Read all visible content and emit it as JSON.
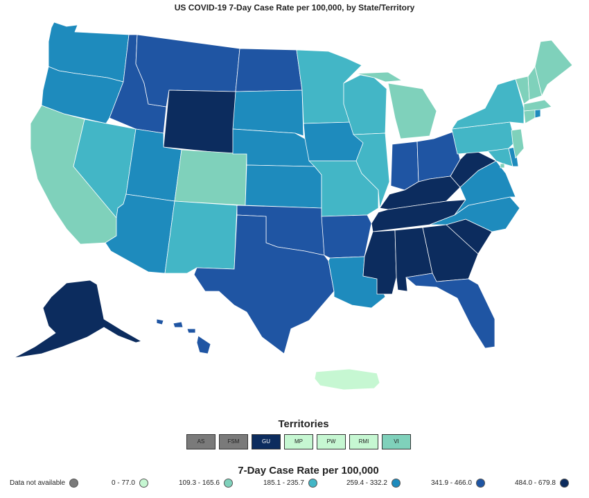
{
  "title": "US COVID-19 7-Day Case Rate per 100,000, by State/Territory",
  "colors": {
    "na": "#7a7a7a",
    "c1": "#c6f7d2",
    "c2": "#7fd1bb",
    "c3": "#43b6c6",
    "c4": "#1e8bbd",
    "c5": "#1f55a3",
    "c6": "#0c2c5e"
  },
  "territories": {
    "title": "Territories",
    "items": [
      {
        "label": "AS",
        "color": "#7a7a7a"
      },
      {
        "label": "FSM",
        "color": "#7a7a7a"
      },
      {
        "label": "GU",
        "color": "#0c2c5e"
      },
      {
        "label": "MP",
        "color": "#c6f7d2"
      },
      {
        "label": "PW",
        "color": "#c6f7d2"
      },
      {
        "label": "RMI",
        "color": "#c6f7d2"
      },
      {
        "label": "VI",
        "color": "#7fd1bb"
      }
    ]
  },
  "legend": {
    "title": "7-Day Case Rate per 100,000",
    "items": [
      {
        "label": "Data not available",
        "color": "#7a7a7a"
      },
      {
        "label": "0 - 77.0",
        "color": "#c6f7d2"
      },
      {
        "label": "109.3 - 165.6",
        "color": "#7fd1bb"
      },
      {
        "label": "185.1 - 235.7",
        "color": "#43b6c6"
      },
      {
        "label": "259.4 - 332.2",
        "color": "#1e8bbd"
      },
      {
        "label": "341.9 - 466.0",
        "color": "#1f55a3"
      },
      {
        "label": "484.0 - 679.8",
        "color": "#0c2c5e"
      }
    ]
  },
  "states": [
    {
      "name": "WA",
      "cls": "c4"
    },
    {
      "name": "OR",
      "cls": "c4"
    },
    {
      "name": "CA",
      "cls": "c2"
    },
    {
      "name": "NV",
      "cls": "c3"
    },
    {
      "name": "ID",
      "cls": "c5"
    },
    {
      "name": "MT",
      "cls": "c5"
    },
    {
      "name": "WY",
      "cls": "c6"
    },
    {
      "name": "UT",
      "cls": "c4"
    },
    {
      "name": "AZ",
      "cls": "c4"
    },
    {
      "name": "CO",
      "cls": "c2"
    },
    {
      "name": "NM",
      "cls": "c3"
    },
    {
      "name": "ND",
      "cls": "c5"
    },
    {
      "name": "SD",
      "cls": "c4"
    },
    {
      "name": "NE",
      "cls": "c4"
    },
    {
      "name": "KS",
      "cls": "c4"
    },
    {
      "name": "OK",
      "cls": "c5"
    },
    {
      "name": "TX",
      "cls": "c5"
    },
    {
      "name": "MN",
      "cls": "c3"
    },
    {
      "name": "IA",
      "cls": "c4"
    },
    {
      "name": "MO",
      "cls": "c3"
    },
    {
      "name": "AR",
      "cls": "c5"
    },
    {
      "name": "LA",
      "cls": "c4"
    },
    {
      "name": "WI",
      "cls": "c3"
    },
    {
      "name": "IL",
      "cls": "c3"
    },
    {
      "name": "MI",
      "cls": "c2"
    },
    {
      "name": "IN",
      "cls": "c5"
    },
    {
      "name": "OH",
      "cls": "c5"
    },
    {
      "name": "KY",
      "cls": "c6"
    },
    {
      "name": "TN",
      "cls": "c6"
    },
    {
      "name": "MS",
      "cls": "c6"
    },
    {
      "name": "AL",
      "cls": "c6"
    },
    {
      "name": "GA",
      "cls": "c6"
    },
    {
      "name": "FL",
      "cls": "c5"
    },
    {
      "name": "SC",
      "cls": "c6"
    },
    {
      "name": "NC",
      "cls": "c4"
    },
    {
      "name": "VA",
      "cls": "c4"
    },
    {
      "name": "WV",
      "cls": "c6"
    },
    {
      "name": "PA",
      "cls": "c3"
    },
    {
      "name": "NY",
      "cls": "c3"
    },
    {
      "name": "MD",
      "cls": "c3"
    },
    {
      "name": "DE",
      "cls": "c4"
    },
    {
      "name": "NJ",
      "cls": "c2"
    },
    {
      "name": "CT",
      "cls": "c2"
    },
    {
      "name": "RI",
      "cls": "c4"
    },
    {
      "name": "MA",
      "cls": "c2"
    },
    {
      "name": "VT",
      "cls": "c2"
    },
    {
      "name": "NH",
      "cls": "c2"
    },
    {
      "name": "ME",
      "cls": "c2"
    },
    {
      "name": "AK",
      "cls": "c6"
    },
    {
      "name": "HI",
      "cls": "c5"
    },
    {
      "name": "PR",
      "cls": "c1"
    },
    {
      "name": "DC",
      "cls": "c2"
    }
  ]
}
